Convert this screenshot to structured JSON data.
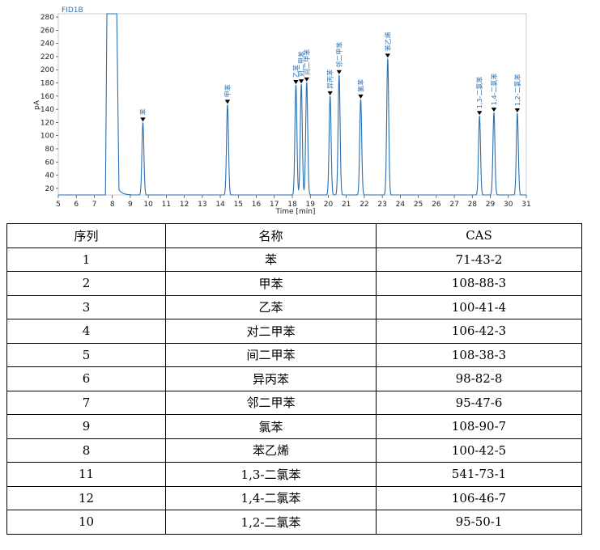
{
  "chart_data": {
    "type": "line",
    "title": "FID1B",
    "xlabel": "Time [min]",
    "ylabel": "pA",
    "xlim": [
      5,
      31
    ],
    "ylim": [
      10,
      285
    ],
    "x_ticks": [
      5,
      6,
      7,
      8,
      9,
      10,
      11,
      12,
      13,
      14,
      15,
      16,
      17,
      18,
      19,
      20,
      21,
      22,
      23,
      24,
      25,
      26,
      27,
      28,
      29,
      30,
      31
    ],
    "y_ticks": [
      20,
      40,
      60,
      80,
      100,
      120,
      140,
      160,
      180,
      200,
      220,
      240,
      260,
      280
    ],
    "baseline": 10,
    "solvent_peak": {
      "x": [
        7.7,
        8.25
      ],
      "top": 285
    },
    "peaks": [
      {
        "rt": 9.7,
        "height": 120,
        "label": "苯"
      },
      {
        "rt": 14.4,
        "height": 147,
        "label": "甲苯"
      },
      {
        "rt": 18.2,
        "height": 177,
        "label": "乙苯"
      },
      {
        "rt": 18.5,
        "height": 178,
        "label": "对二甲苯"
      },
      {
        "rt": 18.8,
        "height": 181,
        "label": "间二甲苯"
      },
      {
        "rt": 20.1,
        "height": 160,
        "label": "异丙苯"
      },
      {
        "rt": 20.6,
        "height": 192,
        "label": "邻二甲苯"
      },
      {
        "rt": 21.8,
        "height": 155,
        "label": "氯苯"
      },
      {
        "rt": 23.3,
        "height": 217,
        "label": "苯乙烯"
      },
      {
        "rt": 28.4,
        "height": 130,
        "label": "1,3-二氯苯"
      },
      {
        "rt": 29.2,
        "height": 135,
        "label": "1,4-二氯苯"
      },
      {
        "rt": 30.5,
        "height": 134,
        "label": "1,2-二氯苯"
      }
    ],
    "line_color": "#2a6fb0",
    "marker_color": "#000000"
  },
  "table": {
    "headers": [
      "序列",
      "名称",
      "CAS"
    ],
    "rows": [
      [
        "1",
        "苯",
        "71-43-2"
      ],
      [
        "2",
        "甲苯",
        "108-88-3"
      ],
      [
        "3",
        "乙苯",
        "100-41-4"
      ],
      [
        "4",
        "对二甲苯",
        "106-42-3"
      ],
      [
        "5",
        "间二甲苯",
        "108-38-3"
      ],
      [
        "6",
        "异丙苯",
        "98-82-8"
      ],
      [
        "7",
        "邻二甲苯",
        "95-47-6"
      ],
      [
        "9",
        "氯苯",
        "108-90-7"
      ],
      [
        "8",
        "苯乙烯",
        "100-42-5"
      ],
      [
        "11",
        "1,3-二氯苯",
        "541-73-1"
      ],
      [
        "12",
        "1,4-二氯苯",
        "106-46-7"
      ],
      [
        "10",
        "1,2-二氯苯",
        "95-50-1"
      ]
    ]
  }
}
